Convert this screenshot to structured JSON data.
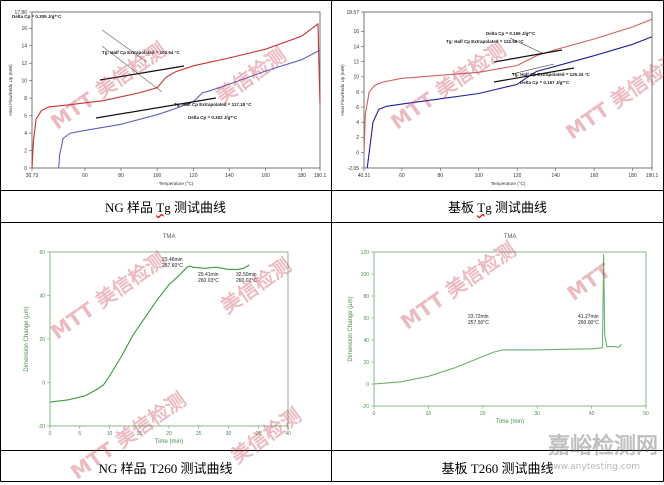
{
  "captions": {
    "ng_tg": [
      "NG 样品 ",
      "Tg",
      " 测试曲线"
    ],
    "sub_tg": [
      "基板 ",
      "Tg",
      " 测试曲线"
    ],
    "ng_t260": "NG 样品 T260 测试曲线",
    "sub_t260": "基板 T260 测试曲线"
  },
  "watermark": "美信检测",
  "watermark_brand": "MTT",
  "logo": {
    "text": "嘉峪检测网",
    "sub": "www.anytesting.com"
  },
  "chart_data": [
    {
      "id": "ng_tg",
      "type": "line",
      "ylabel": "Heat Flow/Endo Up (mW)",
      "xlabel": "Temperature (°C)",
      "xlim": [
        30.73,
        190.1
      ],
      "ylim": [
        0,
        17.86
      ],
      "x_ticks": [
        "30.73",
        "60",
        "80",
        "100",
        "120",
        "140",
        "160",
        "180",
        "190.1"
      ],
      "y_ticks": [
        "0",
        "2",
        "4",
        "6",
        "8",
        "10",
        "12",
        "14",
        "16",
        "17.86"
      ],
      "series": [
        {
          "color": "#c83232",
          "x": [
            30.73,
            31.5,
            33,
            36,
            40,
            50,
            70,
            90,
            100,
            105,
            110,
            120,
            140,
            160,
            180,
            189,
            189.4,
            190.1
          ],
          "y": [
            0,
            3,
            5.6,
            6.6,
            7.0,
            7.2,
            7.7,
            8.6,
            9.2,
            10.4,
            11.0,
            11.7,
            12.6,
            13.6,
            15.1,
            16.5,
            13,
            7.3
          ]
        },
        {
          "color": "#6060c0",
          "x": [
            45.5,
            46,
            48,
            52,
            60,
            80,
            100,
            110,
            120,
            125,
            130,
            140,
            160,
            180,
            190.1
          ],
          "y": [
            0,
            1.5,
            3.4,
            4.0,
            4.3,
            5.0,
            6.1,
            6.8,
            7.6,
            8.6,
            8.9,
            9.6,
            11.1,
            12.4,
            13.5
          ]
        }
      ],
      "annotations": [
        "Delta Cp = 0.305 J/g*°C",
        "Tg: Half Cp Extrapolated = 103.54 °C",
        "Tg: Half Cp Extrapolated = 117.18 °C",
        "Delta Cp = 0.302 J/g*°C"
      ]
    },
    {
      "id": "sub_tg",
      "type": "line",
      "ylabel": "Heat Flow/Endo Up (mW)",
      "xlabel": "Temperature (°C)",
      "xlim": [
        40.31,
        190.1
      ],
      "ylim": [
        -2.05,
        18.57
      ],
      "x_ticks": [
        "40.31",
        "60",
        "80",
        "100",
        "120",
        "140",
        "160",
        "180",
        "190.1"
      ],
      "y_ticks": [
        "-2.05",
        "0",
        "2",
        "4",
        "6",
        "8",
        "10",
        "12",
        "14",
        "16",
        "18.57"
      ],
      "series": [
        {
          "color": "#d06060",
          "x": [
            40.31,
            41,
            43,
            46,
            50,
            60,
            80,
            100,
            120,
            130,
            140,
            160,
            180,
            190.1
          ],
          "y": [
            0,
            5.0,
            8.0,
            8.9,
            9.3,
            9.8,
            10.2,
            10.6,
            11.5,
            12.8,
            13.6,
            15.0,
            16.6,
            17.6
          ]
        },
        {
          "color": "#2020a0",
          "x": [
            42,
            43,
            45,
            48,
            52,
            60,
            80,
            100,
            120,
            125,
            130,
            140,
            160,
            180,
            190.1
          ],
          "y": [
            -2.05,
            0,
            4.0,
            5.7,
            6.1,
            6.4,
            7.1,
            7.8,
            9.0,
            9.9,
            10.7,
            11.4,
            12.8,
            14.3,
            15.3
          ]
        }
      ],
      "annotations": [
        "Delta Cp = 0.156 J/g*°C",
        "Tg: Half Cp Extrapolated = 122.56 °C",
        "Tg: Half Cp Extrapolated = 125.34 °C",
        "Delta Cp = 0.167 J/g*°C"
      ]
    },
    {
      "id": "ng_t260",
      "type": "line",
      "title": "TMA",
      "ylabel": "Dimension Change (µm)",
      "xlabel": "Time (min)",
      "xlim": [
        0,
        40
      ],
      "ylim": [
        -20,
        60
      ],
      "x_ticks": [
        "0",
        "5",
        "10",
        "15",
        "20",
        "25",
        "30",
        "35",
        "40"
      ],
      "y_ticks": [
        "-20",
        "0",
        "20",
        "40",
        "60"
      ],
      "series": [
        {
          "color": "#3c9a3c",
          "x": [
            0,
            3,
            6,
            8,
            9,
            10,
            12,
            14,
            16,
            18,
            20,
            22,
            23,
            23.5,
            24,
            26,
            28,
            30,
            31.5,
            32.5,
            33.5
          ],
          "y": [
            -9,
            -8,
            -6,
            -3,
            -1,
            3,
            12,
            22,
            30,
            38,
            45,
            50,
            53,
            53.5,
            53,
            52.5,
            53,
            52,
            52,
            52.5,
            54
          ]
        }
      ],
      "annotations": [
        "23.46min",
        "257.60°C",
        "29.41min",
        "260.03°C",
        "32.50min",
        "260.02°C"
      ]
    },
    {
      "id": "sub_t260",
      "type": "line",
      "title": "TMA",
      "ylabel": "Dimension Change (µm)",
      "xlabel": "Time (min)",
      "xlim": [
        0,
        50
      ],
      "ylim": [
        -20,
        120
      ],
      "x_ticks": [
        "0",
        "10",
        "20",
        "30",
        "40",
        "50"
      ],
      "y_ticks": [
        "-20",
        "0",
        "20",
        "40",
        "60",
        "80",
        "100",
        "120"
      ],
      "series": [
        {
          "color": "#6cb06c",
          "x": [
            0,
            5,
            10,
            15,
            20,
            22,
            23.7,
            26,
            30,
            35,
            40,
            41.3,
            42,
            42.2,
            42.4,
            42.8,
            44,
            45,
            45.5
          ],
          "y": [
            0,
            2,
            7,
            15,
            25,
            29,
            31,
            31,
            31,
            31.5,
            32,
            32.5,
            33,
            118,
            45,
            34,
            34,
            33.5,
            36
          ]
        }
      ],
      "annotations": [
        "23.72min",
        "257.50°C",
        "41.27min",
        "260.00°C"
      ]
    }
  ]
}
